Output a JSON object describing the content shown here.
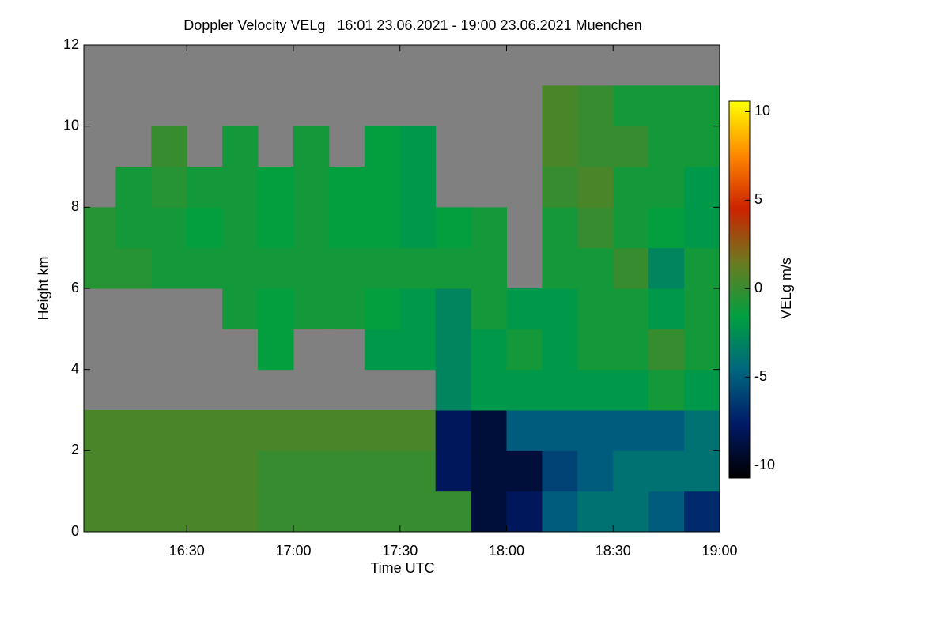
{
  "chart_data": {
    "type": "heatmap",
    "title": "Doppler Velocity VELg   16:01 23.06.2021 - 19:00 23.06.2021 Muenchen",
    "xlabel": "Time UTC",
    "ylabel": "Height km",
    "colorbar_label": "VELg m/s",
    "background": "#808080",
    "colors": [
      "#000000",
      "#001a66",
      "#00667f",
      "#00a040",
      "#6b7a20",
      "#cc2200",
      "#ff8800",
      "#ffff00"
    ],
    "xlim": [
      16.0167,
      19.0
    ],
    "xticks": [
      {
        "value": 16.5,
        "label": "16:30"
      },
      {
        "value": 17.0,
        "label": "17:00"
      },
      {
        "value": 17.5,
        "label": "17:30"
      },
      {
        "value": 18.0,
        "label": "18:00"
      },
      {
        "value": 18.5,
        "label": "18:30"
      },
      {
        "value": 19.0,
        "label": "19:00"
      }
    ],
    "ylim": [
      0,
      12
    ],
    "yticks": [
      0,
      2,
      4,
      6,
      8,
      10,
      12
    ],
    "zlim": [
      -10.7,
      10.6
    ],
    "zticks": [
      -10,
      -5,
      0,
      5,
      10
    ],
    "xbins": [
      16.0167,
      16.1667,
      16.3333,
      16.5,
      16.6667,
      16.8333,
      17.0,
      17.1667,
      17.3333,
      17.5,
      17.6667,
      17.8333,
      18.0,
      18.1667,
      18.3333,
      18.5,
      18.6667,
      18.8333,
      19.0
    ],
    "ybins": [
      0,
      1,
      2,
      3,
      4,
      5,
      6,
      7,
      8,
      9,
      10,
      11,
      12
    ],
    "z": [
      [
        0.5,
        0.5,
        0.5,
        0.5,
        0.5,
        0,
        0,
        0,
        0,
        0,
        0,
        -9,
        -8,
        -5,
        -4,
        -4,
        -5,
        -7
      ],
      [
        0.5,
        0.5,
        0.5,
        0.5,
        0.5,
        0,
        0,
        0,
        0,
        0,
        -8,
        -9,
        -9,
        -6,
        -5,
        -4,
        -4,
        -4
      ],
      [
        0.5,
        0.5,
        0.5,
        0.5,
        0.5,
        0.5,
        0.5,
        0.5,
        0.5,
        0.5,
        -8,
        -9,
        -5,
        -5,
        -5,
        -5,
        -5,
        -4
      ],
      [
        null,
        null,
        null,
        null,
        null,
        null,
        null,
        null,
        null,
        null,
        -3,
        -2,
        -2,
        -2,
        -2,
        -2,
        -1,
        -2
      ],
      [
        null,
        null,
        null,
        null,
        null,
        -1.5,
        null,
        null,
        -2,
        -2,
        -3,
        -2,
        -1,
        -2,
        -1,
        -1,
        0,
        -1
      ],
      [
        null,
        null,
        null,
        null,
        -1,
        -1.5,
        -1,
        -1,
        -1.5,
        -2,
        -3,
        -1,
        -2,
        -2,
        -1,
        -1,
        -2,
        -1
      ],
      [
        -0.5,
        -0.5,
        -1,
        -1,
        -1,
        -1,
        -1,
        -1,
        -1,
        -1,
        -1,
        -1,
        null,
        -1,
        -1,
        0,
        -3,
        -1
      ],
      [
        -0.5,
        -1,
        -1,
        -1.5,
        -1,
        -1.5,
        -1,
        -1.5,
        -1.5,
        -2,
        -1.5,
        -1,
        null,
        -1,
        0,
        -1,
        -1.5,
        -2
      ],
      [
        null,
        -1,
        -0.5,
        -1,
        -1,
        -1.5,
        -1,
        -1.5,
        -1.5,
        -2,
        null,
        null,
        null,
        0,
        0.5,
        -1,
        -1,
        -2
      ],
      [
        null,
        null,
        0,
        null,
        -1,
        null,
        -1,
        null,
        -1.5,
        -2,
        null,
        null,
        null,
        0.5,
        0,
        0,
        -1,
        -1
      ],
      [
        null,
        null,
        null,
        null,
        null,
        null,
        null,
        null,
        null,
        null,
        null,
        null,
        null,
        0.5,
        0,
        -1,
        -1,
        -1
      ],
      [
        null,
        null,
        null,
        null,
        null,
        null,
        null,
        null,
        null,
        null,
        null,
        null,
        null,
        null,
        null,
        null,
        null,
        null
      ]
    ]
  }
}
